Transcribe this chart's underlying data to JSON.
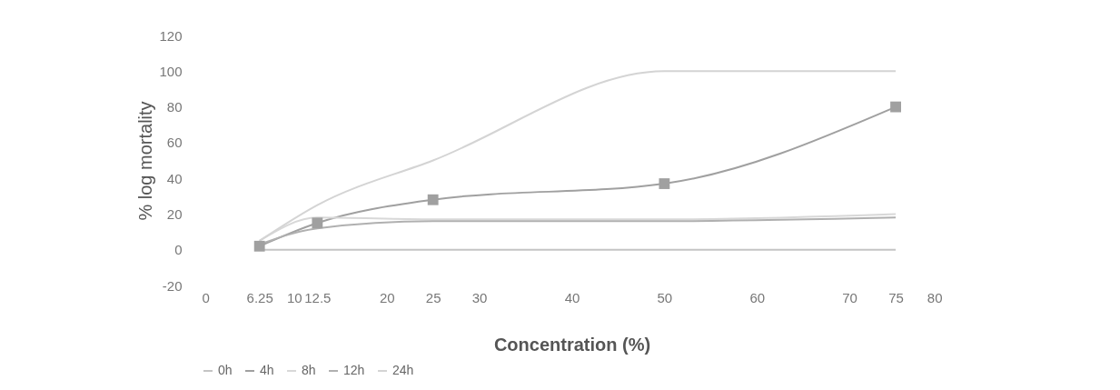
{
  "chart_data": {
    "type": "line",
    "xlabel": "Concentration (%)",
    "ylabel": "% log mortality",
    "x": [
      6.25,
      12.5,
      25,
      50,
      75
    ],
    "series": [
      {
        "name": "0h",
        "color": "#c4c4c4",
        "values": [
          0,
          0,
          0,
          0,
          0
        ]
      },
      {
        "name": "4h",
        "color": "#a0a0a0",
        "marker": "square",
        "values": [
          2,
          15,
          28,
          37,
          80
        ]
      },
      {
        "name": "8h",
        "color": "#d8d8d8",
        "values": [
          5,
          18,
          17,
          17,
          20
        ]
      },
      {
        "name": "12h",
        "color": "#b0b0b0",
        "values": [
          3,
          12,
          16,
          16,
          18
        ]
      },
      {
        "name": "24h",
        "color": "#d4d4d4",
        "values": [
          5,
          25,
          50,
          100,
          100
        ]
      }
    ],
    "xlim": [
      0,
      80
    ],
    "xticks": [
      0,
      6.25,
      10,
      12.5,
      20,
      25,
      30,
      40,
      50,
      60,
      70,
      75,
      80
    ],
    "ylim": [
      -20,
      120
    ],
    "yticks": [
      -20,
      0,
      20,
      40,
      60,
      80,
      100,
      120
    ],
    "grid": false,
    "legend": "bottom",
    "line_style": "solid"
  }
}
